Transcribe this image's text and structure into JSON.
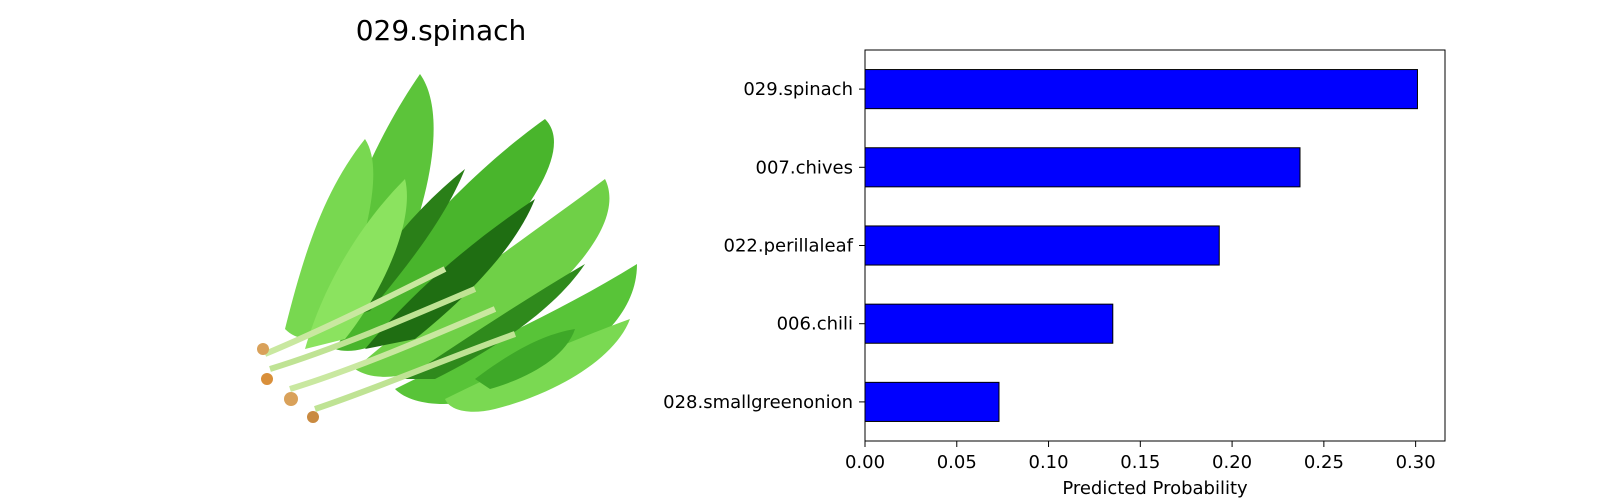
{
  "image_panel": {
    "title": "029.spinach"
  },
  "colors": {
    "bar_fill": "#0000ff",
    "bar_edge": "#000000",
    "leaf_light": "#7ed957",
    "leaf_mid": "#3fb52a",
    "leaf_dark": "#1f7a14",
    "stem": "#c9e8a0",
    "root": "#d9a15a"
  },
  "chart_data": {
    "type": "bar",
    "orientation": "horizontal",
    "categories": [
      "029.spinach",
      "007.chives",
      "022.perillaleaf",
      "006.chili",
      "028.smallgreenonion"
    ],
    "values": [
      0.301,
      0.237,
      0.193,
      0.135,
      0.073
    ],
    "xlabel": "Predicted Probability",
    "ylabel": "",
    "xlim": [
      0,
      0.316
    ],
    "xticks": [
      "0.00",
      "0.05",
      "0.10",
      "0.15",
      "0.20",
      "0.25",
      "0.30"
    ],
    "grid": false,
    "legend": "none"
  }
}
